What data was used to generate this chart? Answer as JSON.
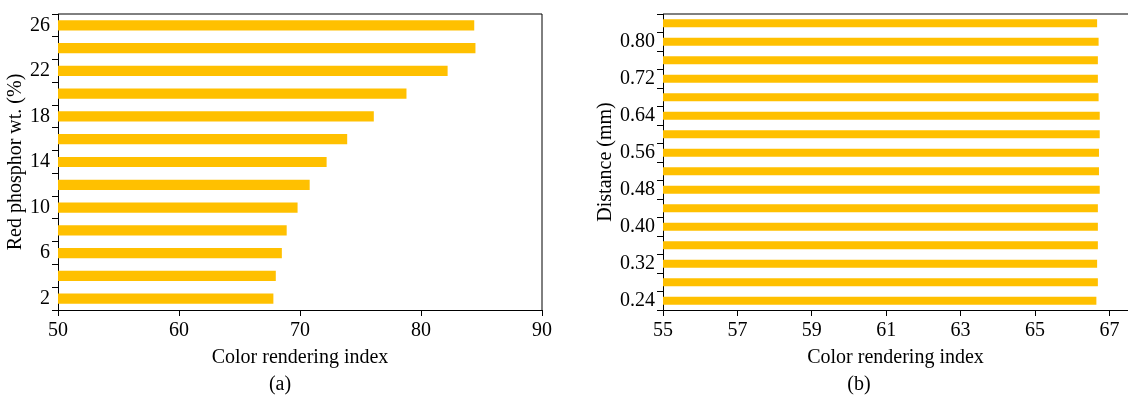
{
  "chart_data": [
    {
      "type": "bar",
      "orientation": "horizontal",
      "xlabel": "Color rendering index",
      "ylabel": "Red phosphor wt. (%)",
      "annotations": [
        "(a)"
      ],
      "categories": [
        "26",
        null,
        "22",
        null,
        "18",
        null,
        "14",
        null,
        "10",
        null,
        "6",
        null,
        "2"
      ],
      "values": [
        84.4,
        84.5,
        82.2,
        78.8,
        76.1,
        73.9,
        72.2,
        70.8,
        69.8,
        68.9,
        68.5,
        68.0,
        67.8
      ],
      "color": "#ffc000",
      "xlim": [
        50,
        90
      ],
      "xticks": [
        50,
        60,
        70,
        80,
        90
      ],
      "grid": false,
      "legend": false
    },
    {
      "type": "bar",
      "orientation": "horizontal",
      "xlabel": "Color rendering index",
      "ylabel": "Distance (mm)",
      "annotations": [
        "(b)"
      ],
      "categories": [
        null,
        "0.80",
        null,
        "0.72",
        null,
        "0.64",
        null,
        "0.56",
        null,
        "0.48",
        null,
        "0.40",
        null,
        "0.32",
        null,
        "0.24"
      ],
      "values": [
        66.67,
        66.71,
        66.69,
        66.69,
        66.71,
        66.74,
        66.74,
        66.72,
        66.72,
        66.74,
        66.69,
        66.69,
        66.69,
        66.67,
        66.69,
        66.65
      ],
      "color": "#ffc000",
      "xlim": [
        55,
        67.5
      ],
      "xticks": [
        55,
        57,
        59,
        61,
        63,
        65,
        67
      ],
      "grid": false,
      "legend": false
    }
  ]
}
